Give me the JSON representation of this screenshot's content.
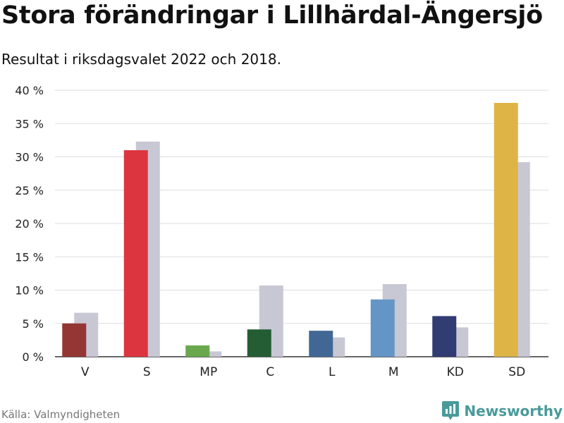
{
  "title": "Stora förändringar i Lillhärdal-Ängersjö",
  "subtitle": "Resultat i riksdagsvalet 2022 och 2018.",
  "source": "Källa: Valmyndigheten",
  "brand": {
    "name": "Newsworthy",
    "icon": "newsworthy-logo-icon",
    "color": "#4a9a9a"
  },
  "chart_data": {
    "type": "bar",
    "categories": [
      "V",
      "S",
      "MP",
      "C",
      "L",
      "M",
      "KD",
      "SD"
    ],
    "series": [
      {
        "values": [
          5.0,
          31.0,
          1.7,
          4.1,
          3.9,
          8.6,
          6.1,
          38.1
        ],
        "colors": [
          "#943634",
          "#dc353f",
          "#6aa84f",
          "#245d33",
          "#416894",
          "#6396c6",
          "#313c72",
          "#dfb446"
        ]
      },
      {
        "values": [
          6.6,
          32.3,
          0.8,
          10.7,
          2.9,
          10.9,
          4.4,
          29.2
        ],
        "color": "#c8c7d4"
      }
    ],
    "ylim": [
      0,
      40
    ],
    "yticks": [
      0,
      5,
      10,
      15,
      20,
      25,
      30,
      35,
      40
    ],
    "ytick_labels": [
      "0 %",
      "5 %",
      "10 %",
      "15 %",
      "20 %",
      "25 %",
      "30 %",
      "35 %",
      "40 %"
    ],
    "grid": true
  }
}
